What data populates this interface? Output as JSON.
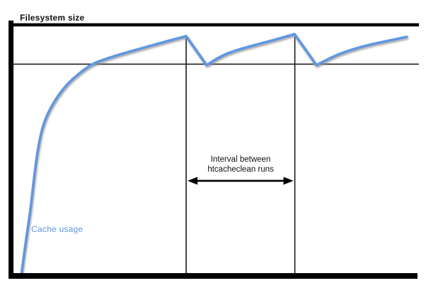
{
  "page": {
    "background": "#ffffff"
  },
  "labels": {
    "filesystem_size": "Filesystem size",
    "interval": "Interval between\nhtcacheclean runs",
    "cache_usage": "Cache usage"
  },
  "colors": {
    "curve": "#5e97e2",
    "curve_shadow": "#8f8f8f",
    "axis": "#000000",
    "thin_line": "#1c1c1c",
    "text": "#111111"
  },
  "chart_data": {
    "type": "line",
    "title": "",
    "xlabel": "",
    "ylabel": "",
    "x_axis": {
      "range": [
        0,
        100
      ],
      "ticks": [],
      "unit": "time (implicit, no ticks shown)"
    },
    "y_axis": {
      "range": [
        0,
        100
      ],
      "ticks": [],
      "unit": "% of filesystem size"
    },
    "grid": false,
    "legend": "inline label on curve",
    "series": [
      {
        "name": "Cache usage",
        "color": "#5e97e2",
        "segments": [
          {
            "kind": "growth",
            "points": [
              [
                0,
                0
              ],
              [
                1.3,
                15.0
              ],
              [
                2.4,
                26.3
              ],
              [
                3.3,
                39.1
              ],
              [
                4.4,
                51.8
              ],
              [
                5.9,
                61.8
              ],
              [
                8.8,
                70.3
              ],
              [
                11.9,
                76.5
              ],
              [
                15.0,
                80.7
              ],
              [
                18.3,
                84.4
              ],
              [
                22.4,
                86.7
              ],
              [
                26.6,
                88.7
              ],
              [
                31.2,
                90.7
              ],
              [
                36.3,
                92.9
              ],
              [
                42.6,
                95.5
              ]
            ]
          },
          {
            "kind": "cleanup-drop",
            "points": [
              [
                42.6,
                95.5
              ],
              [
                47.9,
                83.9
              ]
            ]
          },
          {
            "kind": "growth",
            "points": [
              [
                47.9,
                83.9
              ],
              [
                51.4,
                87.5
              ],
              [
                56.0,
                90.1
              ],
              [
                61.5,
                92.4
              ],
              [
                66.1,
                94.3
              ],
              [
                70.6,
                96.3
              ]
            ]
          },
          {
            "kind": "cleanup-drop",
            "points": [
              [
                70.6,
                96.3
              ],
              [
                76.3,
                83.9
              ]
            ]
          },
          {
            "kind": "growth",
            "points": [
              [
                76.3,
                83.9
              ],
              [
                80.4,
                87.3
              ],
              [
                85.3,
                90.1
              ],
              [
                90.8,
                92.4
              ],
              [
                95.4,
                93.8
              ],
              [
                99.6,
                95.2
              ]
            ]
          }
        ]
      }
    ],
    "reference_lines": [
      {
        "name": "filesystem-size",
        "label": "Filesystem size",
        "pct": 100,
        "style": "thick"
      },
      {
        "name": "cache-limit",
        "label": "",
        "pct": 84.3,
        "style": "thin"
      }
    ],
    "cleanup_runs": [
      {
        "t": 42.6,
        "peak_pct": 95.5
      },
      {
        "t": 70.7,
        "peak_pct": 96.3
      }
    ],
    "annotation": {
      "label": "Interval between\nhtcacheclean runs",
      "from_t": 42.6,
      "to_t": 70.7,
      "pct": 37.7
    }
  }
}
